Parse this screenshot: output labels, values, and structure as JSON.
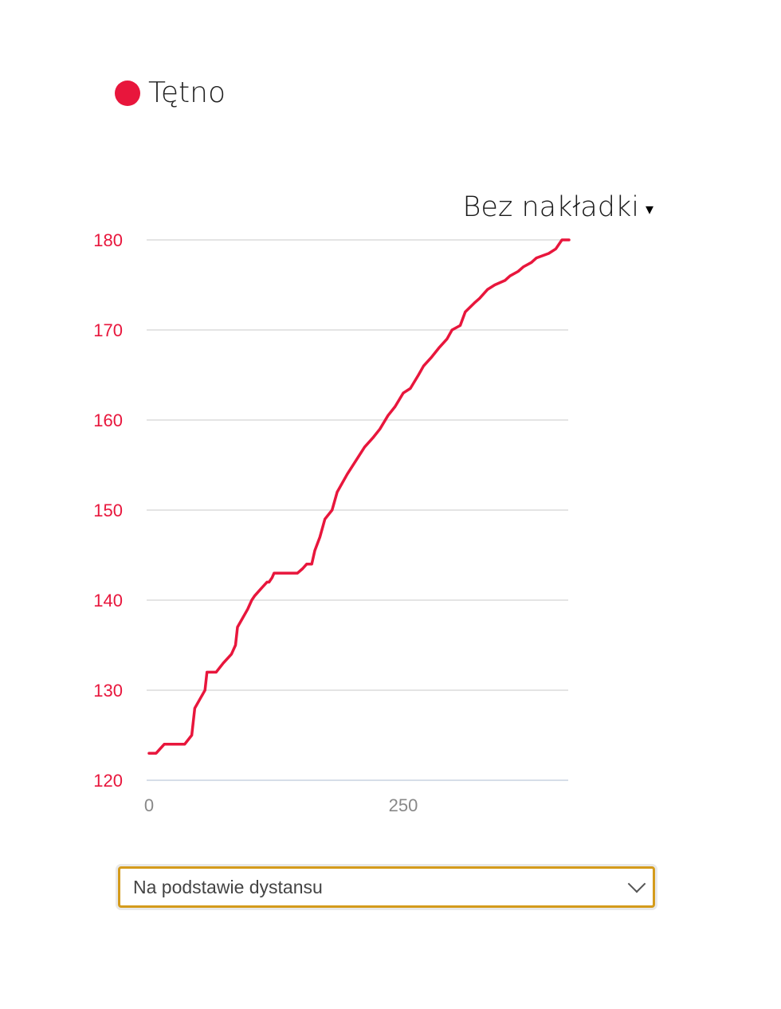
{
  "legend": {
    "label": "Tętno",
    "color": "#e8163c"
  },
  "overlay": {
    "label": "Bez nakładki",
    "caret": "▾"
  },
  "mode_select": {
    "selected": "Na podstawie dystansu",
    "icon": "chevron-down-icon"
  },
  "chart_data": {
    "type": "line",
    "xlim": [
      0,
      413
    ],
    "ylim": [
      120,
      180
    ],
    "x_ticks": [
      0,
      250
    ],
    "y_ticks": [
      120,
      130,
      140,
      150,
      160,
      170,
      180
    ],
    "grid": true,
    "line_color": "#e8163c",
    "axis_label_color": "#e8163c",
    "series": [
      {
        "x": [
          0,
          7,
          15,
          35,
          42,
          45,
          50,
          55,
          57,
          66,
          73,
          81,
          85,
          87,
          92,
          97,
          101,
          104,
          108,
          112,
          116,
          118,
          121,
          123,
          128,
          146,
          151,
          155,
          160,
          163,
          168,
          173,
          180,
          185,
          195,
          212,
          220,
          227,
          235,
          242,
          250,
          257,
          265,
          270,
          278,
          285,
          293,
          298,
          306,
          311,
          320,
          325,
          333,
          340,
          350,
          355,
          363,
          368,
          376,
          381,
          393,
          400,
          406,
          413
        ],
        "y": [
          123,
          123,
          124,
          124,
          125,
          128,
          129,
          130,
          132,
          132,
          133,
          134,
          135,
          137,
          138,
          139,
          140,
          140.5,
          141,
          141.5,
          142,
          142,
          142.5,
          143,
          143,
          143,
          143.5,
          144,
          144,
          145.5,
          147,
          149,
          150,
          152,
          154,
          157,
          158,
          159,
          160.5,
          161.5,
          163,
          163.5,
          165,
          166,
          167,
          168,
          169,
          170,
          170.5,
          172,
          173,
          173.5,
          174.5,
          175,
          175.5,
          176,
          176.5,
          177,
          177.5,
          178,
          178.5,
          179,
          180,
          180
        ]
      }
    ]
  }
}
